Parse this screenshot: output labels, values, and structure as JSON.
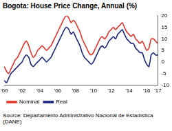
{
  "chart_data": {
    "type": "line",
    "title": "Bogota: House Price Change, Annual (%)",
    "source": "Source: Departamento Administrativo Nacional de Estadística (DANE)",
    "categories": [
      "'00",
      null,
      null,
      null,
      null,
      null,
      null,
      null,
      "'02",
      null,
      null,
      null,
      null,
      null,
      null,
      null,
      "'04",
      null,
      null,
      null,
      null,
      null,
      null,
      null,
      "'06",
      null,
      null,
      null,
      null,
      null,
      null,
      null,
      "'08",
      null,
      null,
      null,
      null,
      null,
      null,
      null,
      "'10",
      null,
      null,
      null,
      null,
      null,
      null,
      null,
      "'12",
      null,
      null,
      null,
      null,
      null,
      null,
      null,
      "'14",
      null,
      null,
      null,
      null,
      null,
      null,
      null,
      "'16",
      null,
      null,
      null,
      null,
      "'17"
    ],
    "series": [
      {
        "name": "Nominal",
        "color": "#e8322b",
        "values": [
          -2,
          -4,
          -5,
          -3,
          -1,
          1,
          2,
          4,
          6,
          8,
          9,
          7,
          4,
          2,
          3,
          5,
          6,
          7,
          6,
          5,
          6,
          7,
          9,
          11,
          13,
          15,
          17,
          19,
          20,
          19,
          17,
          18,
          17,
          15,
          13,
          10,
          8,
          6,
          4,
          3,
          4,
          6,
          8,
          10,
          11,
          10,
          11,
          13,
          14,
          15,
          14,
          15,
          16,
          17,
          15,
          13,
          12,
          11,
          12,
          10,
          9,
          8,
          9,
          7,
          5,
          6,
          10,
          10,
          9,
          8
        ]
      },
      {
        "name": "Real",
        "color": "#1a237e",
        "values": [
          -8,
          -9,
          -7,
          -5,
          -4,
          -3,
          -2,
          -1,
          0,
          2,
          3,
          2,
          -1,
          -2,
          -1,
          0,
          1,
          2,
          1,
          0,
          1,
          2,
          4,
          6,
          8,
          10,
          12,
          14,
          15,
          14,
          12,
          13,
          11,
          9,
          7,
          4,
          2,
          1,
          0,
          -1,
          0,
          2,
          4,
          6,
          7,
          6,
          7,
          9,
          10,
          11,
          10,
          12,
          13,
          14,
          12,
          10,
          9,
          8,
          8,
          6,
          5,
          4,
          4,
          1,
          -1,
          -2,
          3,
          4,
          3,
          3
        ]
      }
    ],
    "ylim": [
      -10,
      20
    ],
    "yticks": [
      -10,
      -5,
      0,
      5,
      10,
      15,
      20
    ],
    "grid": false,
    "legend": "bottom"
  }
}
